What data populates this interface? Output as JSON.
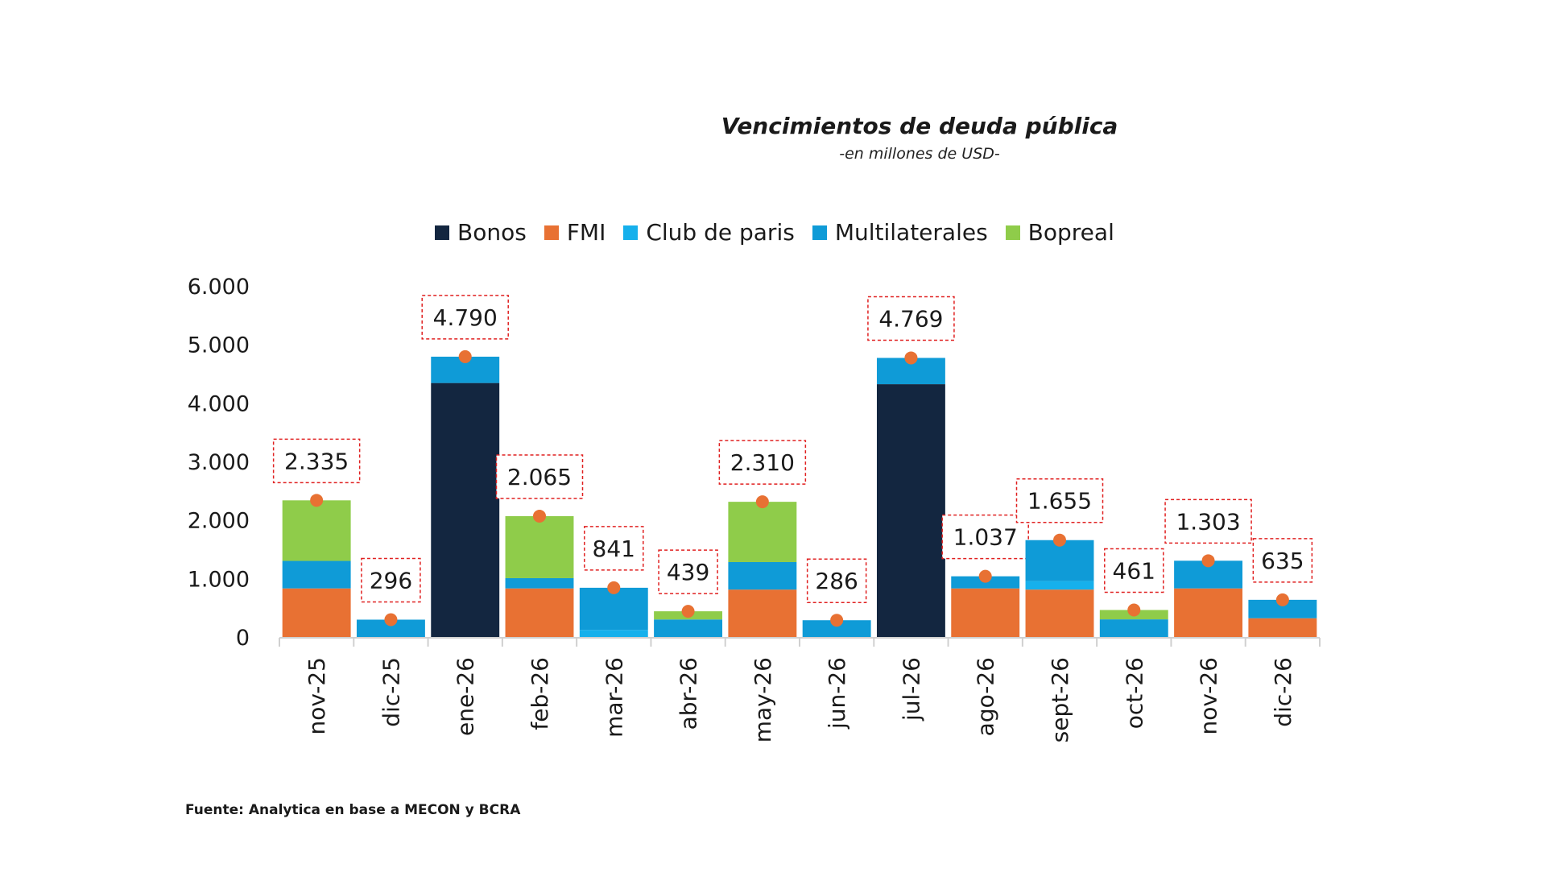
{
  "chart_data": {
    "type": "bar",
    "stacked": true,
    "title": "Vencimientos de deuda pública",
    "subtitle": "-en millones de USD-",
    "xlabel": "",
    "ylabel": "",
    "ylim": [
      0,
      6000
    ],
    "yticks": [
      0,
      1000,
      2000,
      3000,
      4000,
      5000,
      6000
    ],
    "ytick_labels": [
      "0",
      "1.000",
      "2.000",
      "3.000",
      "4.000",
      "5.000",
      "6.000"
    ],
    "grid": false,
    "legend_position": "top-center",
    "categories": [
      "nov-25",
      "dic-25",
      "ene-26",
      "feb-26",
      "mar-26",
      "abr-26",
      "may-26",
      "jun-26",
      "jul-26",
      "ago-26",
      "sept-26",
      "oct-26",
      "nov-26",
      "dic-26"
    ],
    "series": [
      {
        "name": "Bonos",
        "color": "#132640",
        "values": [
          0,
          0,
          4340,
          0,
          0,
          0,
          0,
          0,
          4320,
          0,
          0,
          0,
          0,
          0
        ]
      },
      {
        "name": "FMI",
        "color": "#e87133",
        "values": [
          830,
          0,
          0,
          830,
          0,
          0,
          810,
          0,
          0,
          830,
          810,
          0,
          830,
          320
        ]
      },
      {
        "name": "Club de paris",
        "color": "#16b0ec",
        "values": [
          0,
          0,
          0,
          0,
          120,
          0,
          0,
          0,
          0,
          0,
          145,
          0,
          0,
          0
        ]
      },
      {
        "name": "Multilaterales",
        "color": "#0f9bd7",
        "values": [
          470,
          296,
          450,
          175,
          721,
          299,
          470,
          286,
          449,
          207,
          700,
          301,
          473,
          315
        ]
      },
      {
        "name": "Bopreal",
        "color": "#8fcc4a",
        "values": [
          1035,
          0,
          0,
          1060,
          0,
          140,
          1030,
          0,
          0,
          0,
          0,
          160,
          0,
          0
        ]
      }
    ],
    "totals": [
      2335,
      296,
      4790,
      2065,
      841,
      439,
      2310,
      286,
      4769,
      1037,
      1655,
      461,
      1303,
      635
    ],
    "total_labels": [
      "2.335",
      "296",
      "4.790",
      "2.065",
      "841",
      "439",
      "2.310",
      "286",
      "4.769",
      "1.037",
      "1.655",
      "461",
      "1.303",
      "635"
    ],
    "total_marker_color": "#e87133",
    "label_box_color": "#e02020"
  },
  "footer": "Fuente: Analytica en base a MECON y BCRA"
}
